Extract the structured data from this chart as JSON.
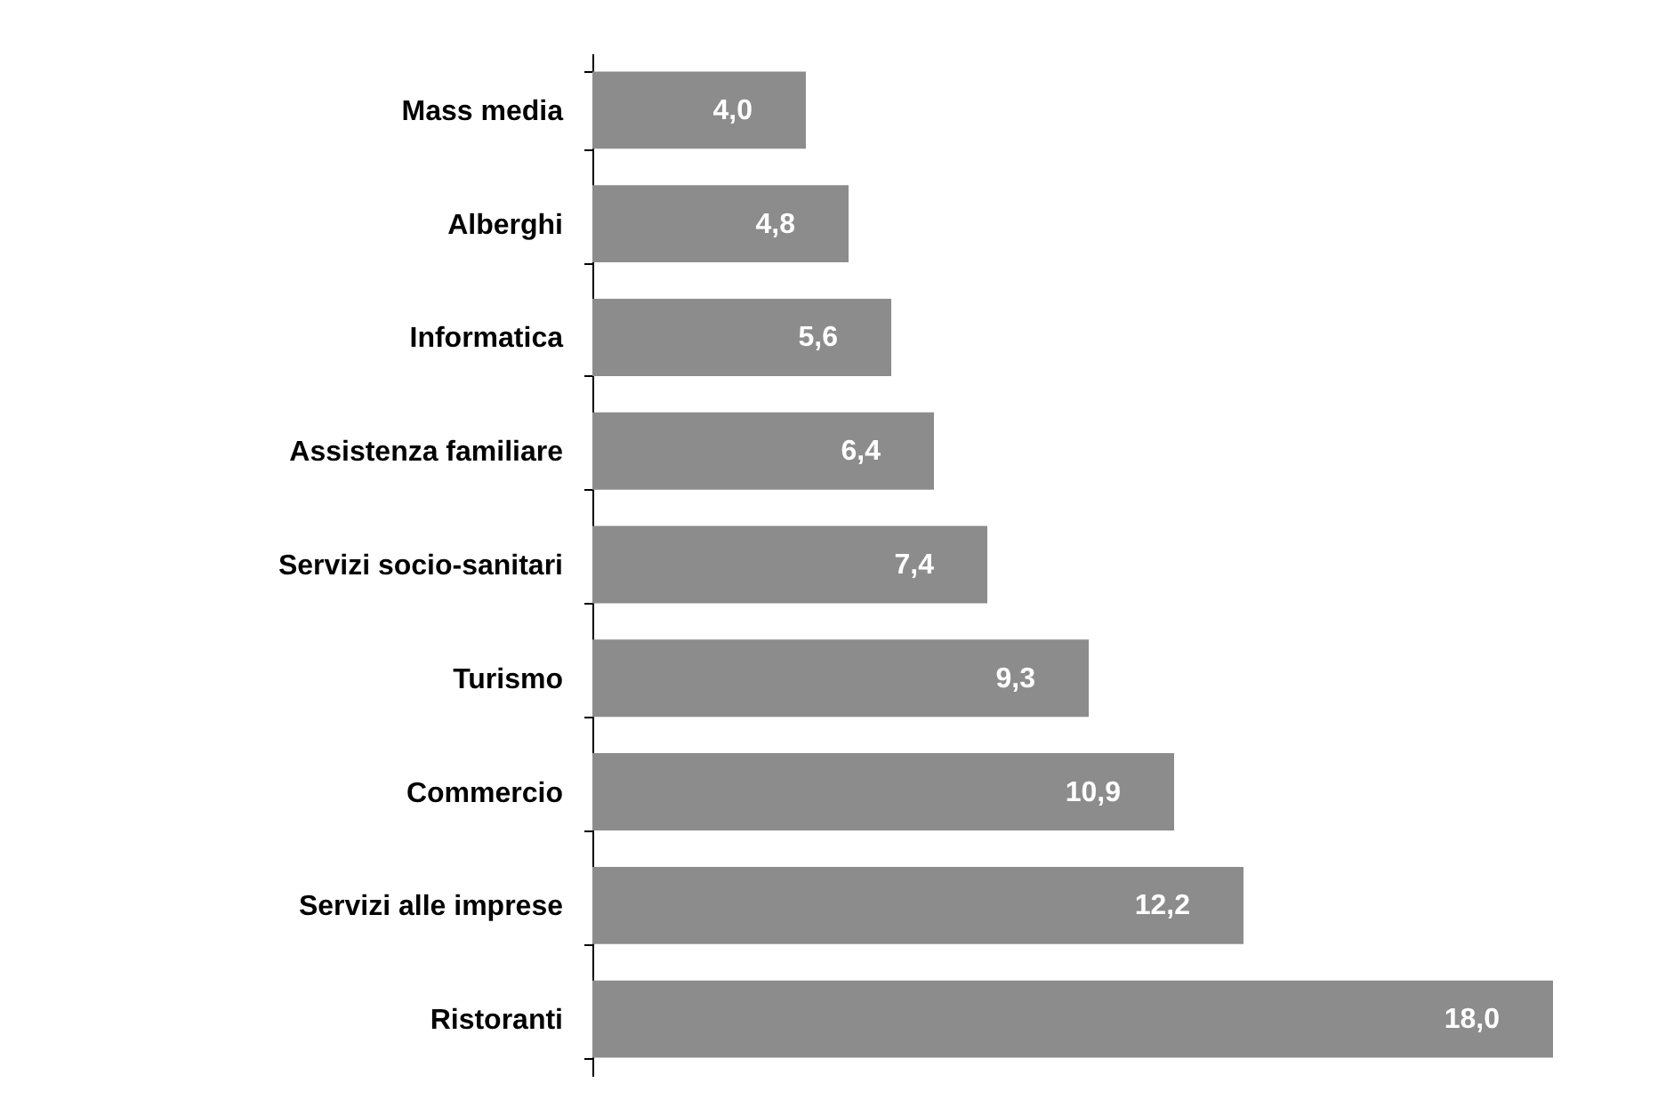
{
  "chart_data": {
    "type": "bar",
    "orientation": "horizontal",
    "categories": [
      "Mass media",
      "Alberghi",
      "Informatica",
      "Assistenza familiare",
      "Servizi socio-sanitari",
      "Turismo",
      "Commercio",
      "Servizi alle imprese",
      "Ristoranti"
    ],
    "values": [
      4.0,
      4.8,
      5.6,
      6.4,
      7.4,
      9.3,
      10.9,
      12.2,
      18.0
    ],
    "value_labels": [
      "4,0",
      "4,8",
      "5,6",
      "6,4",
      "7,4",
      "9,3",
      "10,9",
      "12,2",
      "18,0"
    ],
    "color": "#8c8c8c",
    "tick_labels": "y"
  }
}
